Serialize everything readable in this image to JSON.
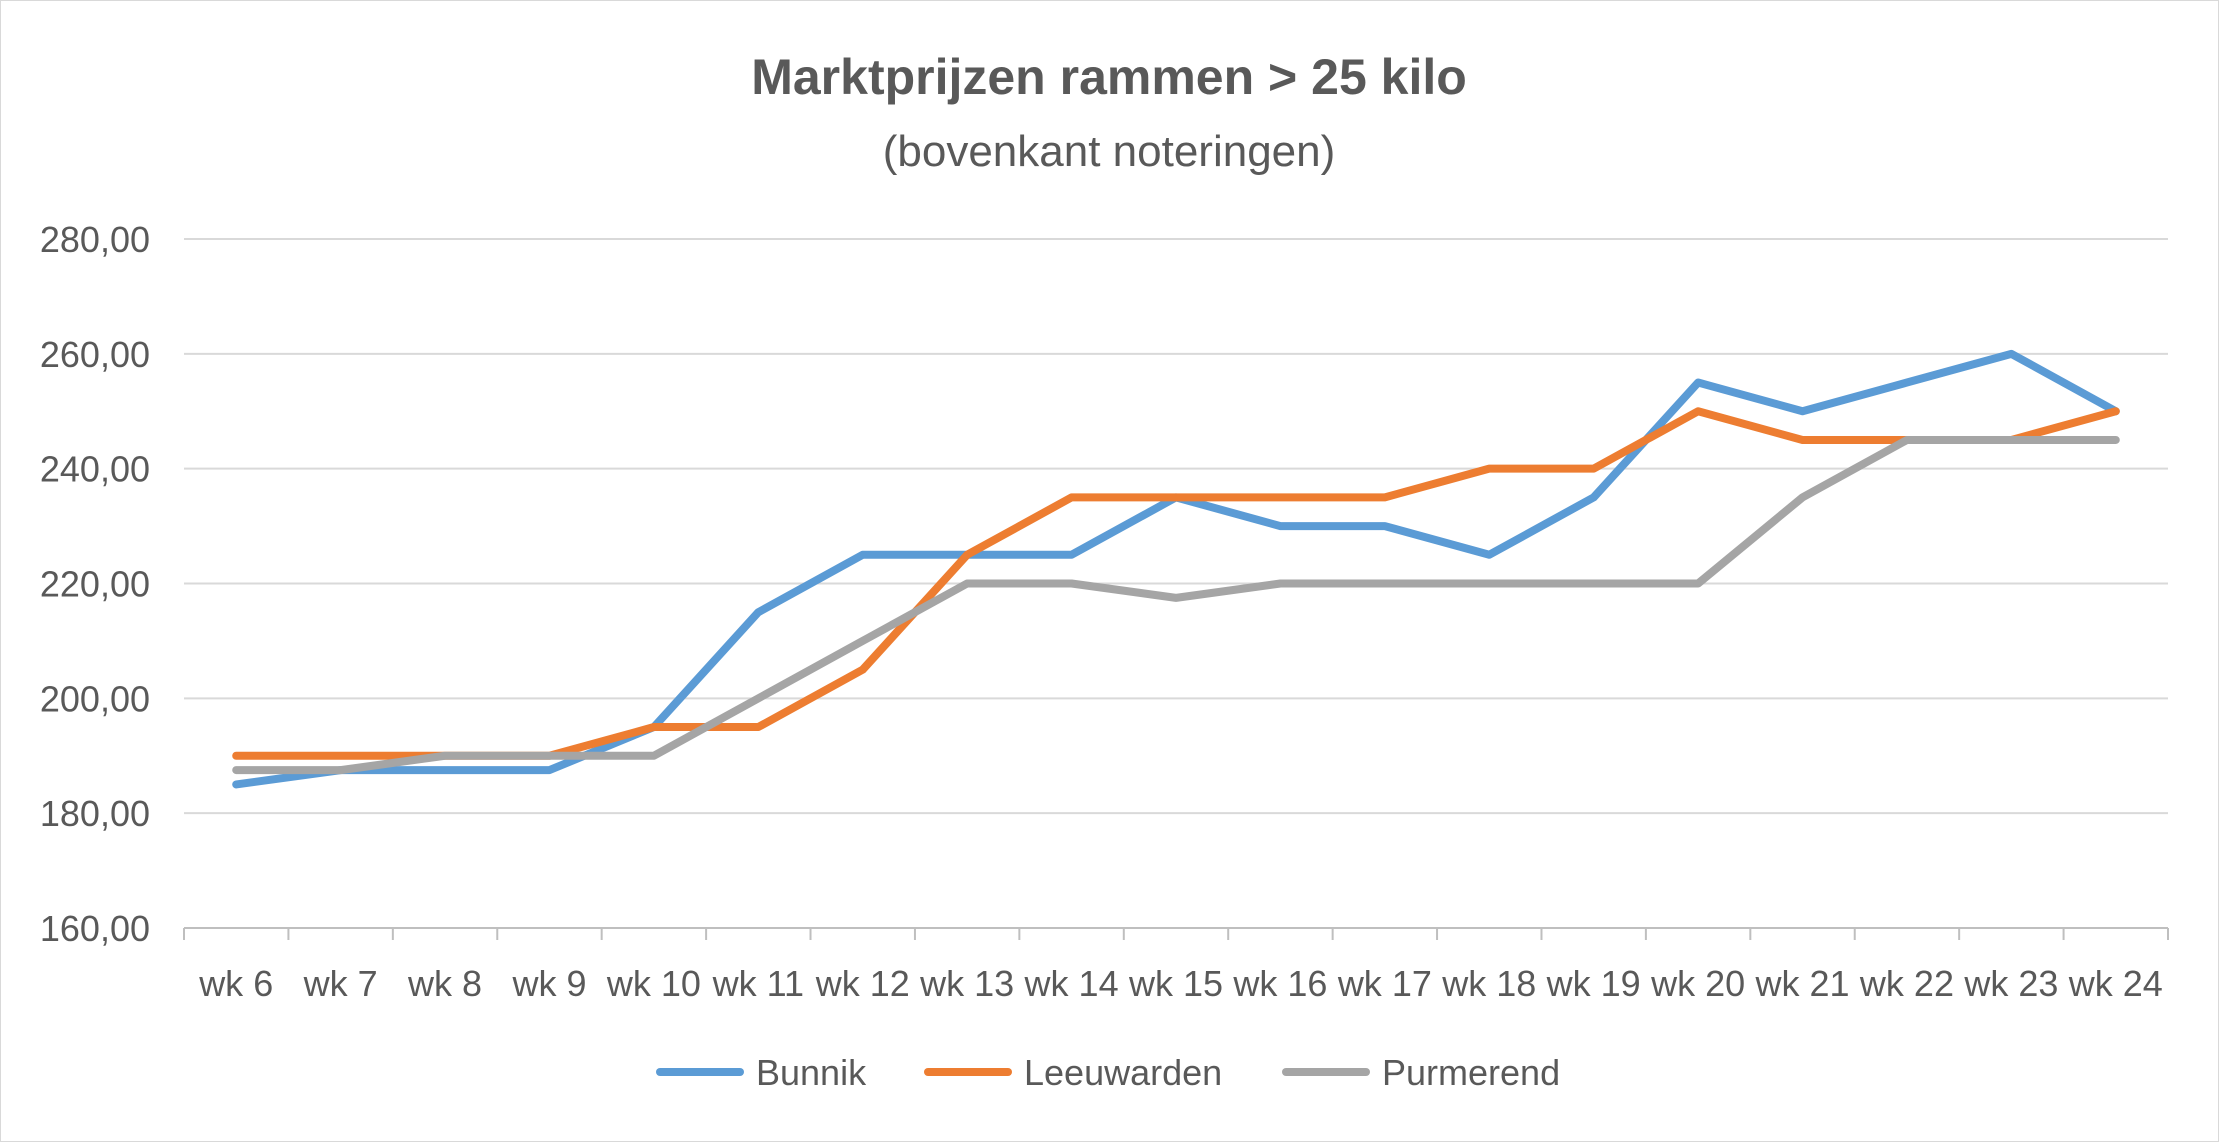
{
  "chart_data": {
    "type": "line",
    "title": "Marktprijzen rammen > 25 kilo",
    "subtitle": "(bovenkant noteringen)",
    "xlabel": "",
    "ylabel": "",
    "ylim": [
      160,
      280
    ],
    "yticks": [
      "160,00",
      "180,00",
      "200,00",
      "220,00",
      "240,00",
      "260,00",
      "280,00"
    ],
    "grid": true,
    "legend_position": "bottom",
    "categories": [
      "wk 6",
      "wk 7",
      "wk 8",
      "wk 9",
      "wk 10",
      "wk 11",
      "wk 12",
      "wk 13",
      "wk 14",
      "wk 15",
      "wk 16",
      "wk 17",
      "wk 18",
      "wk 19",
      "wk 20",
      "wk 21",
      "wk 22",
      "wk 23",
      "wk 24"
    ],
    "series": [
      {
        "name": "Bunnik",
        "color": "#5b9bd5",
        "values": [
          185,
          187.5,
          187.5,
          187.5,
          195,
          215,
          225,
          225,
          225,
          235,
          230,
          230,
          225,
          235,
          255,
          250,
          255,
          260,
          250
        ]
      },
      {
        "name": "Leeuwarden",
        "color": "#ed7d31",
        "values": [
          190,
          190,
          190,
          190,
          195,
          195,
          205,
          225,
          235,
          235,
          235,
          235,
          240,
          240,
          250,
          245,
          245,
          245,
          250
        ]
      },
      {
        "name": "Purmerend",
        "color": "#a5a5a5",
        "values": [
          187.5,
          187.5,
          190,
          190,
          190,
          200,
          210,
          220,
          220,
          217.5,
          220,
          220,
          220,
          220,
          220,
          235,
          245,
          245,
          245
        ]
      }
    ]
  }
}
